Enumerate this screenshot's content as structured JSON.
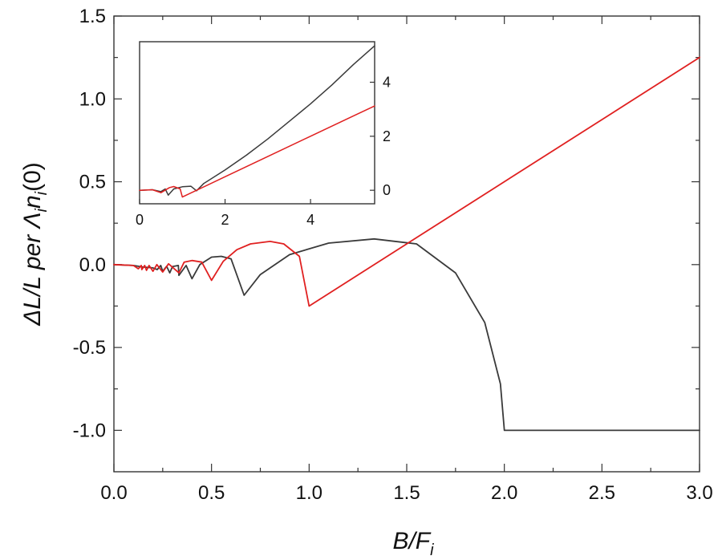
{
  "chart_data": {
    "type": "line",
    "main": {
      "xlabel": {
        "main": "B/F",
        "sub": "i"
      },
      "ylabel": {
        "prefix": "ΔL/L per Λ",
        "mid": "n",
        "sub1": "i",
        "sub2": "i",
        "suffix": "(0)"
      },
      "xlim": [
        0,
        3
      ],
      "ylim": [
        -1.25,
        1.5
      ],
      "xticks": [
        0.0,
        0.5,
        1.0,
        1.5,
        2.0,
        2.5,
        3.0
      ],
      "yticks": [
        -1.0,
        -0.5,
        0.0,
        0.5,
        1.0,
        1.5
      ],
      "grid": false,
      "series": [
        {
          "color": "#3a3a3a",
          "x": [
            0,
            0.1,
            0.15,
            0.2,
            0.222,
            0.24,
            0.25,
            0.27,
            0.286,
            0.3,
            0.33,
            0.333,
            0.37,
            0.4,
            0.44,
            0.5,
            0.55,
            0.6,
            0.667,
            0.75,
            0.9,
            1.1,
            1.333,
            1.55,
            1.75,
            1.9,
            1.98,
            2.0,
            2.25,
            2.5,
            2.75,
            3.0
          ],
          "y": [
            0,
            -0.005,
            -0.015,
            -0.02,
            -0.03,
            -0.005,
            -0.04,
            -0.01,
            -0.05,
            -0.012,
            -0.005,
            -0.065,
            -0.005,
            -0.085,
            0.0,
            0.045,
            0.05,
            0.035,
            -0.185,
            -0.06,
            0.06,
            0.13,
            0.155,
            0.125,
            -0.05,
            -0.35,
            -0.72,
            -1.0,
            -1.0,
            -1.0,
            -1.0,
            -1.0
          ]
        },
        {
          "color": "#e02020",
          "x": [
            0,
            0.1,
            0.125,
            0.14,
            0.143,
            0.158,
            0.167,
            0.18,
            0.2,
            0.22,
            0.25,
            0.28,
            0.333,
            0.36,
            0.4,
            0.45,
            0.5,
            0.56,
            0.63,
            0.7,
            0.8,
            0.87,
            0.95,
            1.0,
            1.5,
            2.0,
            2.5,
            3.0
          ],
          "y": [
            0,
            -0.005,
            -0.025,
            -0.005,
            -0.03,
            -0.005,
            -0.035,
            -0.005,
            -0.04,
            0.0,
            -0.045,
            0.005,
            -0.05,
            0.015,
            0.025,
            0.015,
            -0.095,
            0.02,
            0.09,
            0.125,
            0.14,
            0.125,
            0.05,
            -0.25,
            0.125,
            0.5,
            0.875,
            1.25
          ]
        }
      ]
    },
    "inset": {
      "xlim": [
        0,
        5.5
      ],
      "ylim": [
        -0.5,
        5.5
      ],
      "xticks": [
        0,
        2,
        4
      ],
      "yticks": [
        0,
        2,
        4
      ],
      "series": [
        {
          "color": "#3a3a3a",
          "x": [
            0,
            0.3,
            0.5,
            0.6,
            0.67,
            0.8,
            1.0,
            1.2,
            1.333,
            1.5,
            2.0,
            2.5,
            3.0,
            3.5,
            4.0,
            4.5,
            5.0,
            5.5
          ],
          "y": [
            0,
            0.02,
            -0.05,
            0.05,
            -0.18,
            0.05,
            0.13,
            0.15,
            -0.02,
            0.25,
            0.75,
            1.3,
            1.9,
            2.55,
            3.2,
            3.9,
            4.65,
            5.35
          ]
        },
        {
          "color": "#e02020",
          "x": [
            0,
            0.3,
            0.5,
            0.7,
            0.8,
            0.95,
            1.0,
            2.0,
            3.0,
            4.0,
            5.0,
            5.5
          ],
          "y": [
            0,
            0.02,
            -0.09,
            0.1,
            0.14,
            0.05,
            -0.25,
            0.5,
            1.25,
            2.0,
            2.75,
            3.12
          ]
        }
      ]
    }
  }
}
